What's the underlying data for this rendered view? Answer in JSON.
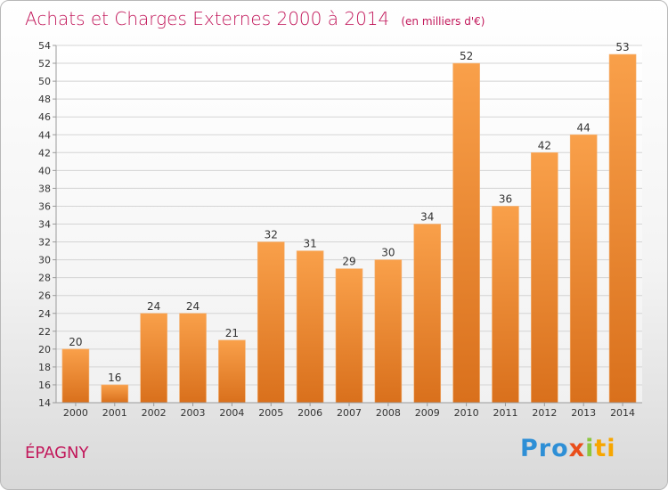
{
  "title": "Achats et Charges Externes 2000 à 2014",
  "unit_label": "(en milliers d'€)",
  "commune": "ÉPAGNY",
  "logo": {
    "text": "Proxiti",
    "parts": [
      "Pro",
      "x",
      "i",
      "ti"
    ]
  },
  "colors": {
    "title": "#c2185b",
    "bar_light": "#f9a04a",
    "bar_dark": "#d9701c",
    "grid": "#d4d4d4"
  },
  "chart_data": {
    "type": "bar",
    "categories": [
      "2000",
      "2001",
      "2002",
      "2003",
      "2004",
      "2005",
      "2006",
      "2007",
      "2008",
      "2009",
      "2010",
      "2011",
      "2012",
      "2013",
      "2014"
    ],
    "values": [
      20,
      16,
      24,
      24,
      21,
      32,
      31,
      29,
      30,
      34,
      52,
      36,
      42,
      44,
      53
    ],
    "ylim": [
      14,
      54
    ],
    "yticks": [
      14,
      16,
      18,
      20,
      22,
      24,
      26,
      28,
      30,
      32,
      34,
      36,
      38,
      40,
      42,
      44,
      46,
      48,
      50,
      52,
      54
    ],
    "grid": true,
    "data_labels": true
  }
}
